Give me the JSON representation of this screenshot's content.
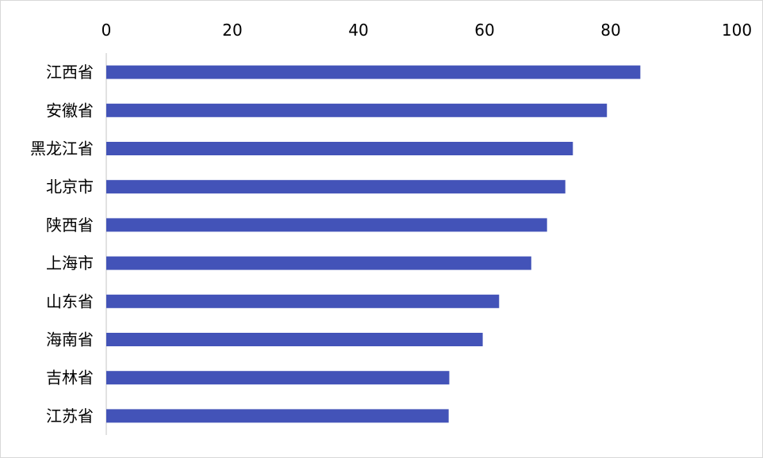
{
  "chart_data": {
    "type": "bar",
    "orientation": "horizontal",
    "categories": [
      "江西省",
      "安徽省",
      "黑龙江省",
      "北京市",
      "陕西省",
      "上海市",
      "山东省",
      "海南省",
      "吉林省",
      "江苏省"
    ],
    "values": [
      84.7,
      79.4,
      74.0,
      72.8,
      69.9,
      67.4,
      62.3,
      59.7,
      54.4,
      54.3
    ],
    "xlim": [
      0,
      100
    ],
    "x_ticks": [
      "0",
      "20",
      "40",
      "60",
      "80",
      "100"
    ],
    "x_axis_position": "top",
    "grid": false,
    "legend": "none",
    "colors": {
      "bar": "#4353b8",
      "axis": "#d9d9d9",
      "text": "#000000"
    }
  }
}
